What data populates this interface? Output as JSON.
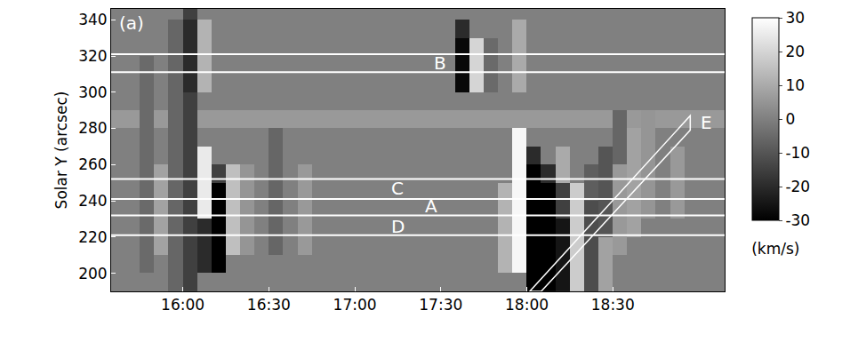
{
  "chart_data": {
    "type": "heatmap",
    "panel": "(a)",
    "ylabel": "Solar Y (arcsec)",
    "x": [
      937.5,
      942.5,
      947.5,
      952.5,
      957.5,
      962.5,
      967.5,
      972.5,
      977.5,
      982.5,
      987.5,
      992.5,
      997.5,
      1002.5,
      1007.5,
      1012.5,
      1017.5,
      1022.5,
      1027.5,
      1032.5,
      1037.5,
      1042.5,
      1047.5,
      1052.5,
      1057.5,
      1062.5,
      1067.5,
      1072.5,
      1077.5,
      1082.5,
      1087.5,
      1092.5,
      1097.5,
      1102.5,
      1107.5,
      1112.5,
      1117.5,
      1122.5,
      1127.5,
      1132.5,
      1137.5,
      1142.5,
      1147.5
    ],
    "y": [
      195,
      205,
      215,
      225,
      235,
      245,
      255,
      265,
      275,
      285,
      295,
      305,
      315,
      325,
      335,
      345
    ],
    "cells": [
      [
        0,
        0,
        0,
        0,
        -6,
        -15,
        0,
        0,
        0,
        0,
        0,
        0,
        0,
        0,
        0,
        0,
        0,
        0,
        0,
        0,
        0,
        0,
        0,
        0,
        0,
        0,
        0,
        0,
        0,
        -30,
        -30,
        -25,
        18,
        -12,
        8,
        0,
        0,
        0,
        0,
        0,
        0,
        0,
        0
      ],
      [
        0,
        0,
        -5,
        0,
        -6,
        -15,
        -20,
        -30,
        0,
        0,
        0,
        0,
        0,
        0,
        0,
        0,
        0,
        0,
        0,
        0,
        0,
        0,
        0,
        0,
        0,
        0,
        0,
        12,
        28,
        -30,
        -30,
        -25,
        18,
        -12,
        8,
        0,
        0,
        0,
        0,
        0,
        0,
        0,
        0
      ],
      [
        0,
        0,
        -5,
        8,
        -6,
        -15,
        -20,
        -30,
        15,
        5,
        0,
        -6,
        0,
        6,
        0,
        0,
        0,
        0,
        0,
        0,
        0,
        0,
        0,
        0,
        0,
        0,
        0,
        12,
        28,
        -30,
        -30,
        -25,
        18,
        -12,
        8,
        6,
        0,
        0,
        0,
        0,
        0,
        0,
        0
      ],
      [
        0,
        0,
        -5,
        8,
        -6,
        -15,
        -20,
        -30,
        15,
        5,
        0,
        -6,
        0,
        6,
        0,
        0,
        0,
        0,
        0,
        0,
        0,
        0,
        0,
        0,
        0,
        0,
        0,
        12,
        28,
        -30,
        -30,
        -25,
        18,
        -12,
        -10,
        6,
        8,
        0,
        0,
        0,
        0,
        0,
        0
      ],
      [
        0,
        0,
        -5,
        8,
        -6,
        -15,
        25,
        -30,
        15,
        5,
        0,
        -6,
        0,
        6,
        0,
        0,
        0,
        0,
        0,
        0,
        0,
        0,
        0,
        0,
        0,
        0,
        0,
        12,
        28,
        -30,
        -30,
        -15,
        18,
        -12,
        -10,
        6,
        8,
        5,
        0,
        6,
        0,
        0,
        0
      ],
      [
        0,
        0,
        -5,
        8,
        -6,
        -15,
        25,
        -30,
        15,
        5,
        0,
        -6,
        0,
        6,
        0,
        0,
        0,
        0,
        0,
        0,
        0,
        0,
        0,
        0,
        0,
        0,
        0,
        12,
        28,
        -30,
        -30,
        -15,
        18,
        -8,
        -10,
        6,
        8,
        5,
        0,
        6,
        0,
        0,
        0
      ],
      [
        0,
        0,
        -5,
        8,
        -6,
        -15,
        25,
        -15,
        15,
        5,
        0,
        -6,
        0,
        6,
        0,
        0,
        0,
        0,
        0,
        0,
        0,
        0,
        0,
        0,
        0,
        0,
        0,
        0,
        28,
        -30,
        -20,
        10,
        0,
        -8,
        -10,
        6,
        8,
        5,
        0,
        6,
        0,
        0,
        0
      ],
      [
        0,
        0,
        -5,
        0,
        -6,
        -15,
        25,
        0,
        0,
        0,
        0,
        -6,
        0,
        0,
        0,
        0,
        0,
        0,
        0,
        0,
        0,
        0,
        0,
        0,
        0,
        0,
        0,
        0,
        28,
        -20,
        0,
        10,
        0,
        0,
        -10,
        -6,
        8,
        5,
        0,
        6,
        0,
        0,
        0
      ],
      [
        0,
        0,
        -5,
        0,
        -6,
        -15,
        0,
        0,
        0,
        0,
        0,
        -6,
        0,
        0,
        0,
        0,
        0,
        0,
        0,
        0,
        0,
        0,
        0,
        0,
        0,
        0,
        0,
        0,
        28,
        0,
        0,
        0,
        0,
        0,
        0,
        -6,
        8,
        5,
        0,
        0,
        0,
        0,
        0
      ],
      [
        6,
        6,
        -5,
        6,
        -6,
        -15,
        6,
        6,
        6,
        6,
        6,
        6,
        6,
        6,
        6,
        6,
        6,
        6,
        6,
        6,
        6,
        6,
        6,
        6,
        6,
        6,
        6,
        6,
        6,
        6,
        6,
        6,
        6,
        6,
        6,
        -6,
        6,
        5,
        6,
        6,
        6,
        6,
        6
      ],
      [
        0,
        0,
        -5,
        0,
        -6,
        -15,
        0,
        0,
        0,
        0,
        0,
        0,
        0,
        0,
        0,
        0,
        0,
        0,
        0,
        0,
        0,
        0,
        0,
        0,
        0,
        0,
        0,
        0,
        0,
        0,
        0,
        0,
        0,
        0,
        0,
        0,
        0,
        0,
        0,
        0,
        0,
        0,
        0
      ],
      [
        0,
        0,
        -5,
        0,
        -6,
        -20,
        12,
        0,
        0,
        0,
        0,
        0,
        0,
        0,
        0,
        0,
        0,
        0,
        0,
        0,
        0,
        0,
        0,
        0,
        -28,
        20,
        -5,
        0,
        10,
        0,
        0,
        0,
        0,
        0,
        0,
        0,
        0,
        0,
        0,
        0,
        0,
        0,
        0
      ],
      [
        0,
        0,
        -5,
        0,
        -6,
        -20,
        12,
        0,
        0,
        0,
        0,
        0,
        0,
        0,
        0,
        0,
        0,
        0,
        0,
        0,
        0,
        0,
        0,
        0,
        -28,
        20,
        -5,
        0,
        10,
        0,
        0,
        0,
        0,
        0,
        0,
        0,
        0,
        0,
        0,
        0,
        0,
        0,
        0
      ],
      [
        0,
        0,
        0,
        0,
        -6,
        -20,
        12,
        0,
        0,
        0,
        0,
        0,
        0,
        0,
        0,
        0,
        0,
        0,
        0,
        0,
        0,
        0,
        0,
        0,
        -28,
        20,
        -5,
        0,
        10,
        0,
        0,
        0,
        0,
        0,
        0,
        0,
        0,
        0,
        0,
        0,
        0,
        0,
        0
      ],
      [
        0,
        0,
        0,
        0,
        -6,
        -20,
        12,
        0,
        0,
        0,
        0,
        0,
        0,
        0,
        0,
        0,
        0,
        0,
        0,
        0,
        0,
        0,
        0,
        0,
        -20,
        0,
        0,
        0,
        10,
        0,
        0,
        0,
        0,
        0,
        0,
        0,
        0,
        0,
        0,
        0,
        0,
        0,
        0
      ],
      [
        0,
        0,
        0,
        0,
        0,
        -15,
        0,
        0,
        0,
        0,
        0,
        0,
        0,
        0,
        0,
        0,
        0,
        0,
        0,
        0,
        0,
        0,
        0,
        0,
        0,
        0,
        0,
        0,
        0,
        0,
        0,
        0,
        0,
        0,
        0,
        0,
        0,
        0,
        0,
        0,
        0,
        0,
        0
      ]
    ],
    "xlim": [
      935,
      1149
    ],
    "xticks": [
      {
        "value": 960,
        "label": "16:00"
      },
      {
        "value": 990,
        "label": "16:30"
      },
      {
        "value": 1020,
        "label": "17:00"
      },
      {
        "value": 1050,
        "label": "17:30"
      },
      {
        "value": 1080,
        "label": "18:00"
      },
      {
        "value": 1110,
        "label": "18:30"
      }
    ],
    "ylim": [
      190,
      346
    ],
    "yticks": [
      200,
      220,
      240,
      260,
      280,
      300,
      320,
      340
    ],
    "colorbar": {
      "label": "(km/s)",
      "zlim": [
        -30,
        30
      ],
      "zticks": [
        -30,
        -20,
        -10,
        0,
        10,
        20,
        30
      ]
    },
    "hlines": [
      321,
      311,
      252,
      241,
      232,
      221
    ],
    "annotations": [
      {
        "text": "B",
        "x": 1047,
        "y": 316
      },
      {
        "text": "C",
        "x": 1032,
        "y": 247
      },
      {
        "text": "A",
        "x": 1044,
        "y": 237
      },
      {
        "text": "D",
        "x": 1032,
        "y": 226
      },
      {
        "text": "E",
        "x": 1140,
        "y": 283
      }
    ],
    "path": {
      "x": [
        1081,
        1085,
        1137,
        1137
      ],
      "y": [
        190,
        190,
        279,
        287
      ]
    }
  }
}
